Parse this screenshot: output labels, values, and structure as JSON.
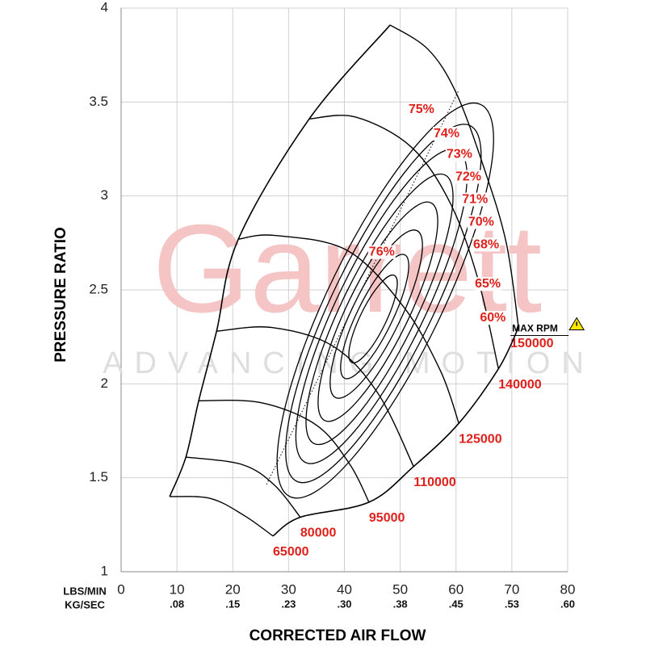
{
  "chart_data": {
    "type": "line",
    "watermark": "Garrett",
    "watermark_subtitle": "ADVANCING MOTION",
    "y_label": "PRESSURE RATIO",
    "x_label": "CORRECTED AIR FLOW",
    "x_units_label": "LBS/MIN",
    "x_secondary_units_label": "KG/SEC",
    "xlim": [
      0,
      80
    ],
    "ylim": [
      1,
      4
    ],
    "xticks": [
      0,
      10,
      20,
      30,
      40,
      50,
      60,
      70,
      80
    ],
    "yticks": [
      1,
      1.5,
      2,
      2.5,
      3,
      3.5,
      4
    ],
    "x_secondary_ticks": [
      {
        "value": 10,
        "label": ".08"
      },
      {
        "value": 20,
        "label": ".15"
      },
      {
        "value": 30,
        "label": ".23"
      },
      {
        "value": 40,
        "label": ".30"
      },
      {
        "value": 50,
        "label": ".38"
      },
      {
        "value": 60,
        "label": ".45"
      },
      {
        "value": 70,
        "label": ".53"
      },
      {
        "value": 80,
        "label": ".60"
      }
    ],
    "grid": true,
    "line_color": "#000000",
    "label_color": "#e0201b",
    "series": [
      {
        "name": "65000",
        "x": [
          8.7,
          16,
          22,
          27.2
        ],
        "values": [
          1.4,
          1.39,
          1.3,
          1.19
        ]
      },
      {
        "name": "80000",
        "x": [
          11.6,
          21.7,
          27.5,
          32.1
        ],
        "values": [
          1.61,
          1.57,
          1.46,
          1.29
        ]
      },
      {
        "name": "95000",
        "x": [
          13.9,
          25,
          35,
          41,
          44.4
        ],
        "values": [
          1.91,
          1.9,
          1.78,
          1.57,
          1.37
        ]
      },
      {
        "name": "110000",
        "x": [
          17.1,
          27,
          38,
          46,
          52.4
        ],
        "values": [
          2.28,
          2.3,
          2.2,
          1.95,
          1.56
        ]
      },
      {
        "name": "125000",
        "x": [
          21,
          27.5,
          40.5,
          50.6,
          57.2,
          60.5
        ],
        "values": [
          2.77,
          2.79,
          2.71,
          2.41,
          2.07,
          1.79
        ]
      },
      {
        "name": "140000",
        "x": [
          33.7,
          42,
          52,
          59,
          64,
          67.6
        ],
        "values": [
          3.41,
          3.42,
          3.26,
          2.96,
          2.55,
          2.08
        ]
      },
      {
        "name": "150000",
        "x": [
          48.2,
          55,
          60,
          65,
          69,
          71.2
        ],
        "values": [
          3.91,
          3.78,
          3.55,
          3.15,
          2.75,
          2.3
        ]
      }
    ],
    "max_speed_label": "MAX RPM",
    "efficiency_labels": [
      {
        "label": "76%",
        "x": 46.7,
        "y": 2.7
      },
      {
        "label": "75%",
        "x": 53.8,
        "y": 3.46
      },
      {
        "label": "74%",
        "x": 58.3,
        "y": 3.33
      },
      {
        "label": "73%",
        "x": 60.6,
        "y": 3.22
      },
      {
        "label": "72%",
        "x": 62.2,
        "y": 3.1
      },
      {
        "label": "71%",
        "x": 63.4,
        "y": 2.98
      },
      {
        "label": "70%",
        "x": 64.5,
        "y": 2.86
      },
      {
        "label": "68%",
        "x": 65.4,
        "y": 2.74
      },
      {
        "label": "65%",
        "x": 65.7,
        "y": 2.53
      },
      {
        "label": "60%",
        "x": 66.6,
        "y": 2.35
      }
    ]
  }
}
